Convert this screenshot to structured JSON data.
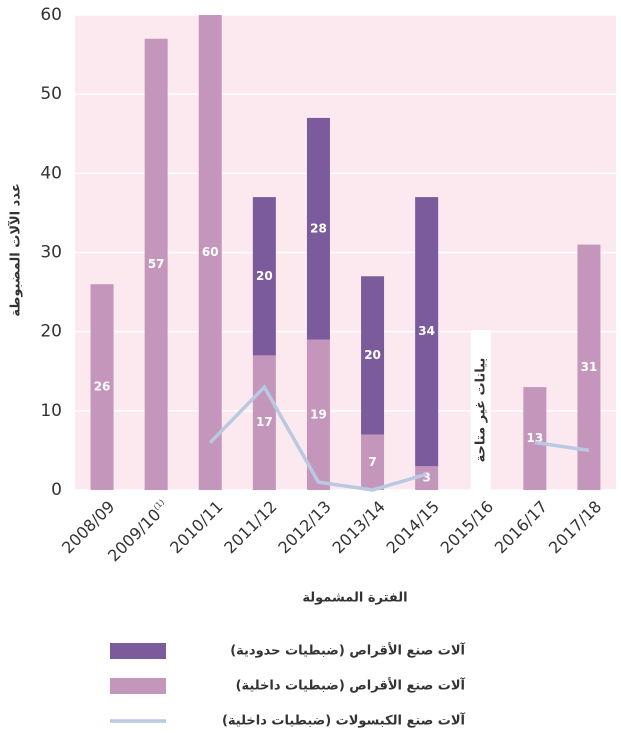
{
  "chart_data": {
    "type": "bar",
    "y_label": "عدد الآلات المضبوطة",
    "x_label": "الفترة المشمولة",
    "categories": [
      "2008/09",
      "2009/10",
      "2010/11",
      "2011/12",
      "2012/13",
      "2013/14",
      "2014/15",
      "2015/16",
      "2016/17",
      "2017/18"
    ],
    "category_notes": [
      null,
      "(1)",
      null,
      null,
      null,
      null,
      null,
      null,
      null,
      null
    ],
    "series": [
      {
        "name": "آلات صنع الأقراص (ضبطيات حدودية)",
        "kind": "bar",
        "color": "#7b5b9b",
        "values": [
          null,
          null,
          null,
          20,
          28,
          20,
          34,
          null,
          null,
          null
        ]
      },
      {
        "name": "آلات صنع الأقراص (ضبطيات داخلية)",
        "kind": "bar",
        "color": "#c596bb",
        "values": [
          26,
          57,
          60,
          17,
          19,
          7,
          3,
          null,
          13,
          31
        ]
      },
      {
        "name": "آلات صنع الكبسولات (ضبطيات داخلية)",
        "kind": "line",
        "color": "#b8c9e1",
        "values": [
          null,
          null,
          6,
          13,
          1,
          0,
          2,
          null,
          6,
          5
        ]
      }
    ],
    "annotation": {
      "category": 7,
      "text": "بيانات غير متاحة"
    },
    "ylim": [
      0,
      60
    ],
    "yticks": [
      0,
      10,
      20,
      30,
      40,
      50,
      60
    ],
    "grid": true,
    "plot_background": "#fce9ef"
  }
}
